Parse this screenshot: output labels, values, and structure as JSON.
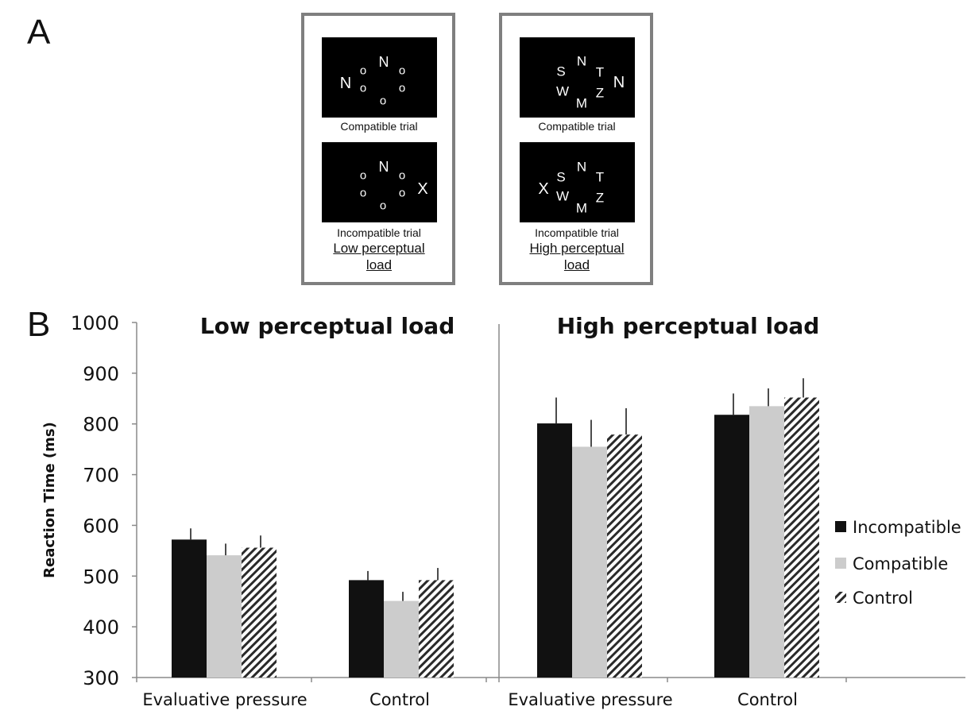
{
  "panel_a": {
    "letter": "A",
    "groups": [
      {
        "load_label_line1": "Low perceptual",
        "load_label_line2": "load",
        "trials": [
          {
            "label": "Compatible trial",
            "stimuli": [
              "N",
              "o",
              "N",
              "o",
              "o",
              "o",
              "o",
              "o"
            ]
          },
          {
            "label": "Incompatible trial",
            "stimuli": [
              "o",
              "N",
              "o",
              "o",
              "o",
              "o",
              "X"
            ]
          }
        ]
      },
      {
        "load_label_line1": "High perceptual",
        "load_label_line2": "load",
        "trials": [
          {
            "label": "Compatible trial",
            "stimuli": [
              "S",
              "N",
              "T",
              "W",
              "Z",
              "M",
              "N"
            ]
          },
          {
            "label": "Incompatible trial",
            "stimuli": [
              "X",
              "S",
              "N",
              "T",
              "W",
              "Z",
              "M"
            ]
          }
        ]
      }
    ]
  },
  "panel_b": {
    "letter": "B"
  },
  "chart_data": {
    "type": "bar",
    "ylabel": "Reaction Time (ms)",
    "ylim": [
      300,
      1000
    ],
    "yticks": [
      300,
      400,
      500,
      600,
      700,
      800,
      900,
      1000
    ],
    "legend_position": "right",
    "series_names": [
      "Incompatible",
      "Compatible",
      "Control"
    ],
    "series_colors": [
      "#111111",
      "#cccccc",
      "hatched"
    ],
    "panels": [
      {
        "title": "Low perceptual load",
        "categories": [
          "Evaluative pressure",
          "Control"
        ],
        "series": [
          {
            "name": "Incompatible",
            "values": [
              572,
              492
            ],
            "errors": [
              22,
              18
            ]
          },
          {
            "name": "Compatible",
            "values": [
              541,
              451
            ],
            "errors": [
              23,
              18
            ]
          },
          {
            "name": "Control",
            "values": [
              556,
              492
            ],
            "errors": [
              24,
              24
            ]
          }
        ]
      },
      {
        "title": "High perceptual load",
        "categories": [
          "Evaluative pressure",
          "Control"
        ],
        "series": [
          {
            "name": "Incompatible",
            "values": [
              801,
              818
            ],
            "errors": [
              51,
              42
            ]
          },
          {
            "name": "Compatible",
            "values": [
              755,
              835
            ],
            "errors": [
              53,
              35
            ]
          },
          {
            "name": "Control",
            "values": [
              779,
              852
            ],
            "errors": [
              52,
              38
            ]
          }
        ]
      }
    ]
  }
}
